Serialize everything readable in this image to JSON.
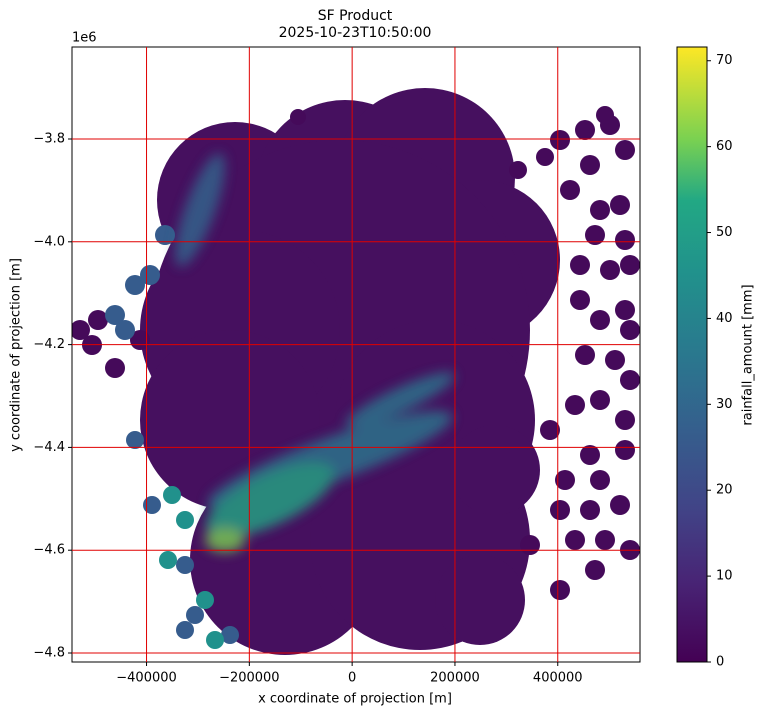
{
  "chart_data": {
    "type": "image",
    "title": "SF Product",
    "subtitle": "2025-10-23T10:50:00",
    "x_label": "x coordinate of projection [m]",
    "y_label": "y coordinate of projection [m]",
    "y_offset_label": "1e6",
    "colorbar_label": "rainfall_amount [mm]",
    "colormap": "viridis",
    "grid": true,
    "grid_color": "#e00000",
    "xlim": [
      -545000,
      560000
    ],
    "xticks": [
      {
        "value": -400000,
        "label": "−400000"
      },
      {
        "value": -200000,
        "label": "−200000"
      },
      0,
      200000,
      400000
    ],
    "ylim": [
      -4817500,
      -3621000
    ],
    "yticks": [
      {
        "value": -4800000,
        "label": "−4.8"
      },
      {
        "value": -4600000,
        "label": "−4.6"
      },
      {
        "value": -4400000,
        "label": "−4.4"
      },
      {
        "value": -4200000,
        "label": "−4.2"
      },
      {
        "value": -4000000,
        "label": "−4.0"
      },
      {
        "value": -3800000,
        "label": "−3.8"
      }
    ],
    "clim": [
      0,
      71.6
    ],
    "cticks": [
      0,
      10,
      20,
      30,
      40,
      50,
      60,
      70
    ]
  }
}
